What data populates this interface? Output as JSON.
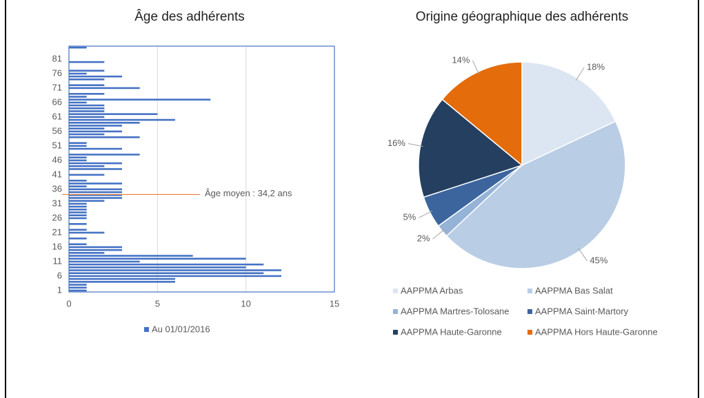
{
  "chart_data": [
    {
      "type": "hbar",
      "title": "Âge des adhérents",
      "categories": [
        1,
        null,
        null,
        null,
        null,
        6,
        null,
        null,
        null,
        null,
        11,
        null,
        null,
        null,
        null,
        16,
        null,
        null,
        null,
        null,
        21,
        null,
        null,
        null,
        null,
        26,
        null,
        null,
        null,
        null,
        31,
        null,
        null,
        null,
        null,
        36,
        null,
        null,
        null,
        null,
        41,
        null,
        null,
        null,
        null,
        46,
        null,
        null,
        null,
        null,
        51,
        null,
        null,
        null,
        null,
        56,
        null,
        null,
        null,
        null,
        61,
        null,
        null,
        null,
        null,
        66,
        null,
        null,
        null,
        null,
        71,
        null,
        null,
        null,
        null,
        76,
        null,
        null,
        null,
        null,
        81,
        null,
        null,
        null,
        null
      ],
      "series": [
        {
          "name": "Au 01/01/2016",
          "color": "#4472c4",
          "values": [
            1,
            1,
            1,
            6,
            6,
            12,
            11,
            12,
            10,
            11,
            4,
            10,
            7,
            2,
            3,
            3,
            1,
            0,
            1,
            0,
            2,
            1,
            0,
            1,
            0,
            1,
            1,
            1,
            1,
            1,
            1,
            2,
            3,
            3,
            3,
            3,
            1,
            3,
            1,
            0,
            2,
            0,
            3,
            2,
            3,
            1,
            1,
            4,
            0,
            3,
            1,
            1,
            0,
            4,
            2,
            3,
            2,
            3,
            4,
            6,
            2,
            5,
            2,
            2,
            2,
            1,
            8,
            1,
            2,
            0,
            4,
            2,
            0,
            2,
            3,
            1,
            2,
            0,
            0,
            2,
            0,
            0,
            0,
            0,
            1
          ]
        }
      ],
      "xlim": [
        0,
        15
      ],
      "xticks": [
        0,
        5,
        10,
        15
      ],
      "grid": true,
      "mean_line": {
        "value": 34.2,
        "label": "Âge moyen : 34,2 ans",
        "color": "#ed7d31"
      }
    },
    {
      "type": "pie",
      "title": "Origine géographique des adhérents",
      "categories": [
        "AAPPMA Arbas",
        "AAPPMA Bas Salat",
        "AAPPMA Martres-Tolosane",
        "AAPPMA Saint-Martory",
        "AAPPMA Haute-Garonne",
        "AAPPMA Hors Haute-Garonne"
      ],
      "values": [
        18,
        45,
        2,
        5,
        16,
        14
      ],
      "value_labels": [
        "18%",
        "45%",
        "2%",
        "5%",
        "16%",
        "14%"
      ],
      "colors": [
        "#dce6f2",
        "#b9cde5",
        "#95b3d7",
        "#3c659e",
        "#243f60",
        "#e46c0a"
      ]
    }
  ]
}
